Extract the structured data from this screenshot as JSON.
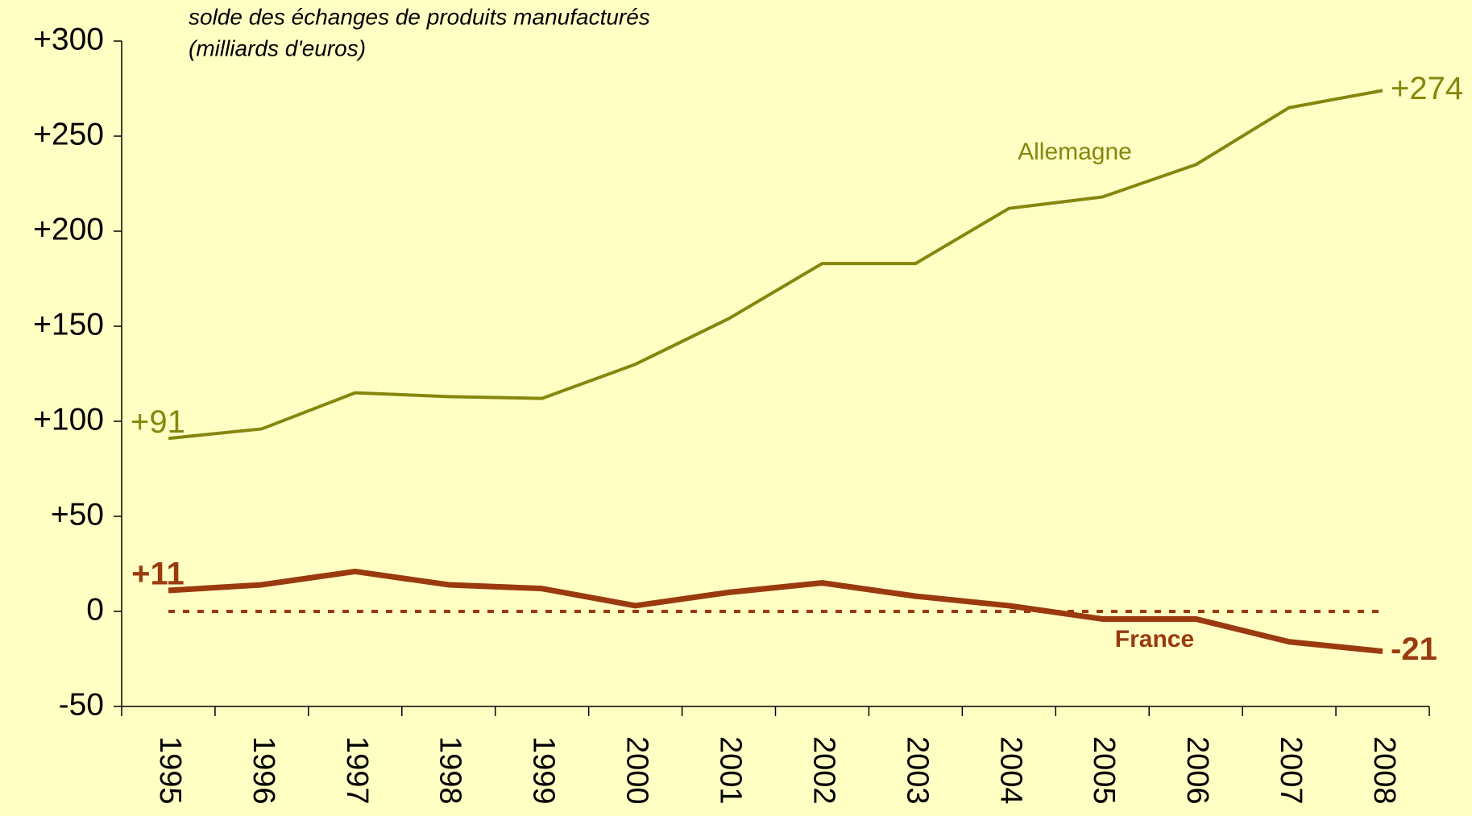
{
  "chart_data": {
    "type": "line",
    "title": "solde des échanges de produits manufacturés",
    "subtitle": "(milliards d'euros)",
    "categories": [
      "1995",
      "1996",
      "1997",
      "1998",
      "1999",
      "2000",
      "2001",
      "2002",
      "2003",
      "2004",
      "2005",
      "2006",
      "2007",
      "2008"
    ],
    "series": [
      {
        "name": "Allemagne",
        "color": "#86860f",
        "values": [
          91,
          96,
          115,
          113,
          112,
          130,
          154,
          183,
          183,
          212,
          218,
          235,
          265,
          274
        ],
        "value_labels": [
          "+91",
          null,
          null,
          null,
          null,
          null,
          null,
          null,
          null,
          null,
          null,
          null,
          null,
          "+274"
        ]
      },
      {
        "name": "France",
        "color": "#9a3a0e",
        "values": [
          11,
          14,
          21,
          14,
          12,
          3,
          10,
          15,
          8,
          3,
          -4,
          -4,
          -16,
          -21
        ],
        "value_labels": [
          "+11",
          null,
          null,
          null,
          null,
          null,
          null,
          null,
          null,
          null,
          null,
          null,
          null,
          "-21"
        ]
      }
    ],
    "ylim": [
      -50,
      300
    ],
    "yticks": [
      -50,
      {
        "value": 0,
        "label": "0"
      },
      {
        "value": 50,
        "label": "+50"
      },
      {
        "value": 100,
        "label": "+100"
      },
      {
        "value": 150,
        "label": "+150"
      },
      {
        "value": 200,
        "label": "+200"
      },
      {
        "value": 250,
        "label": "+250"
      },
      {
        "value": 300,
        "label": "+300"
      }
    ],
    "zero_line": {
      "value": 0,
      "color": "#9a3a0e",
      "dashed": true
    },
    "grid": false
  }
}
